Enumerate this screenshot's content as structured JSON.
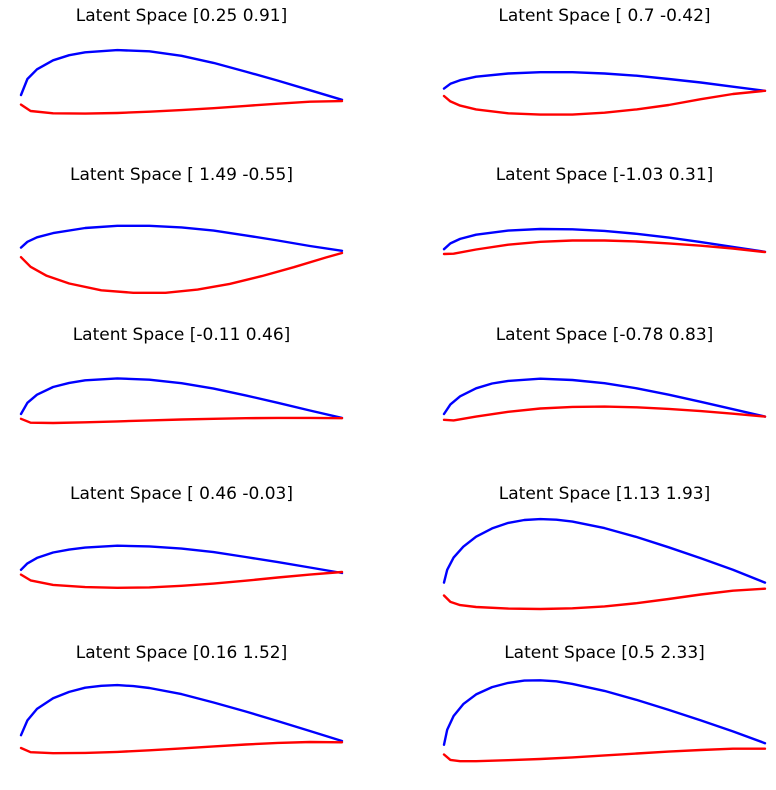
{
  "colors": {
    "upper": "#0000ff",
    "lower": "#ff0000",
    "text": "#000000",
    "background": "#ffffff"
  },
  "chart_data": [
    {
      "type": "line",
      "title": "Latent Space [0.25 0.91]",
      "axes_visible": false,
      "xlim": [
        0,
        1
      ],
      "ylim": [
        -0.12,
        0.22
      ],
      "series": [
        {
          "role": "upper",
          "x": [
            0,
            0.02,
            0.05,
            0.1,
            0.15,
            0.2,
            0.3,
            0.4,
            0.5,
            0.6,
            0.7,
            0.8,
            0.9,
            1.0
          ],
          "y": [
            0,
            0.05,
            0.08,
            0.108,
            0.124,
            0.133,
            0.14,
            0.136,
            0.122,
            0.1,
            0.073,
            0.045,
            0.015,
            -0.015
          ]
        },
        {
          "role": "lower",
          "x": [
            0,
            0.03,
            0.1,
            0.2,
            0.3,
            0.4,
            0.5,
            0.6,
            0.7,
            0.8,
            0.9,
            1.0
          ],
          "y": [
            -0.03,
            -0.05,
            -0.057,
            -0.058,
            -0.056,
            -0.052,
            -0.047,
            -0.041,
            -0.034,
            -0.027,
            -0.021,
            -0.019
          ]
        }
      ]
    },
    {
      "type": "line",
      "title": "Latent Space [ 0.7  -0.42]",
      "axes_visible": false,
      "xlim": [
        0,
        1
      ],
      "ylim": [
        -0.12,
        0.22
      ],
      "series": [
        {
          "role": "upper",
          "x": [
            0,
            0.02,
            0.05,
            0.1,
            0.2,
            0.3,
            0.4,
            0.5,
            0.6,
            0.7,
            0.8,
            0.9,
            1.0
          ],
          "y": [
            0.02,
            0.035,
            0.046,
            0.057,
            0.067,
            0.071,
            0.071,
            0.067,
            0.06,
            0.05,
            0.039,
            0.026,
            0.013
          ]
        },
        {
          "role": "lower",
          "x": [
            0,
            0.02,
            0.05,
            0.1,
            0.2,
            0.3,
            0.4,
            0.5,
            0.6,
            0.7,
            0.8,
            0.9,
            1.0
          ],
          "y": [
            -0.003,
            -0.02,
            -0.033,
            -0.045,
            -0.057,
            -0.061,
            -0.061,
            -0.055,
            -0.045,
            -0.031,
            -0.013,
            0.003,
            0.013
          ]
        }
      ]
    },
    {
      "type": "line",
      "title": "Latent Space [ 1.49 -0.55]",
      "axes_visible": false,
      "xlim": [
        0,
        1
      ],
      "ylim": [
        -0.12,
        0.22
      ],
      "series": [
        {
          "role": "upper",
          "x": [
            0,
            0.02,
            0.05,
            0.1,
            0.2,
            0.3,
            0.4,
            0.5,
            0.6,
            0.7,
            0.8,
            0.9,
            1.0
          ],
          "y": [
            0.02,
            0.038,
            0.052,
            0.065,
            0.081,
            0.088,
            0.088,
            0.083,
            0.073,
            0.058,
            0.042,
            0.025,
            0.01
          ]
        },
        {
          "role": "lower",
          "x": [
            0,
            0.03,
            0.08,
            0.15,
            0.25,
            0.35,
            0.45,
            0.55,
            0.65,
            0.75,
            0.85,
            0.95,
            1.0
          ],
          "y": [
            -0.01,
            -0.04,
            -0.068,
            -0.092,
            -0.113,
            -0.121,
            -0.121,
            -0.111,
            -0.093,
            -0.069,
            -0.041,
            -0.011,
            0.003
          ]
        }
      ]
    },
    {
      "type": "line",
      "title": "Latent Space [-1.03  0.31]",
      "axes_visible": false,
      "xlim": [
        0,
        1
      ],
      "ylim": [
        -0.12,
        0.22
      ],
      "series": [
        {
          "role": "upper",
          "x": [
            0,
            0.02,
            0.05,
            0.1,
            0.2,
            0.3,
            0.4,
            0.5,
            0.6,
            0.7,
            0.8,
            0.9,
            1.0
          ],
          "y": [
            0.015,
            0.033,
            0.047,
            0.06,
            0.073,
            0.078,
            0.077,
            0.072,
            0.063,
            0.051,
            0.037,
            0.022,
            0.007
          ]
        },
        {
          "role": "lower",
          "x": [
            0,
            0.03,
            0.1,
            0.2,
            0.3,
            0.4,
            0.5,
            0.6,
            0.7,
            0.8,
            0.9,
            1.0
          ],
          "y": [
            0,
            0.001,
            0.014,
            0.029,
            0.038,
            0.042,
            0.042,
            0.039,
            0.033,
            0.026,
            0.017,
            0.006
          ]
        }
      ]
    },
    {
      "type": "line",
      "title": "Latent Space [-0.11  0.46]",
      "axes_visible": false,
      "xlim": [
        0,
        1
      ],
      "ylim": [
        -0.12,
        0.22
      ],
      "series": [
        {
          "role": "upper",
          "x": [
            0,
            0.02,
            0.05,
            0.1,
            0.15,
            0.2,
            0.3,
            0.4,
            0.5,
            0.6,
            0.7,
            0.8,
            0.9,
            1.0
          ],
          "y": [
            0,
            0.035,
            0.06,
            0.084,
            0.097,
            0.105,
            0.111,
            0.107,
            0.096,
            0.079,
            0.058,
            0.035,
            0.011,
            -0.012
          ]
        },
        {
          "role": "lower",
          "x": [
            0,
            0.03,
            0.1,
            0.2,
            0.3,
            0.4,
            0.5,
            0.6,
            0.7,
            0.8,
            0.9,
            1.0
          ],
          "y": [
            -0.015,
            -0.027,
            -0.028,
            -0.026,
            -0.023,
            -0.02,
            -0.017,
            -0.015,
            -0.013,
            -0.012,
            -0.012,
            -0.013
          ]
        }
      ]
    },
    {
      "type": "line",
      "title": "Latent Space [-0.78  0.83]",
      "axes_visible": false,
      "xlim": [
        0,
        1
      ],
      "ylim": [
        -0.12,
        0.22
      ],
      "series": [
        {
          "role": "upper",
          "x": [
            0,
            0.02,
            0.05,
            0.1,
            0.15,
            0.2,
            0.3,
            0.4,
            0.5,
            0.6,
            0.7,
            0.8,
            0.9,
            1.0
          ],
          "y": [
            0,
            0.03,
            0.055,
            0.08,
            0.095,
            0.103,
            0.11,
            0.106,
            0.096,
            0.08,
            0.06,
            0.038,
            0.015,
            -0.008
          ]
        },
        {
          "role": "lower",
          "x": [
            0,
            0.03,
            0.1,
            0.2,
            0.3,
            0.4,
            0.5,
            0.6,
            0.7,
            0.8,
            0.9,
            1.0
          ],
          "y": [
            -0.018,
            -0.02,
            -0.008,
            0.007,
            0.017,
            0.022,
            0.023,
            0.021,
            0.016,
            0.009,
            0.001,
            -0.008
          ]
        }
      ]
    },
    {
      "type": "line",
      "title": "Latent Space [ 0.46 -0.03]",
      "axes_visible": false,
      "xlim": [
        0,
        1
      ],
      "ylim": [
        -0.12,
        0.22
      ],
      "series": [
        {
          "role": "upper",
          "x": [
            0,
            0.02,
            0.05,
            0.1,
            0.15,
            0.2,
            0.3,
            0.4,
            0.5,
            0.6,
            0.7,
            0.8,
            0.9,
            1.0
          ],
          "y": [
            0.01,
            0.03,
            0.047,
            0.064,
            0.073,
            0.079,
            0.085,
            0.083,
            0.076,
            0.065,
            0.05,
            0.034,
            0.017,
            0
          ]
        },
        {
          "role": "lower",
          "x": [
            0,
            0.03,
            0.1,
            0.2,
            0.3,
            0.4,
            0.5,
            0.6,
            0.7,
            0.8,
            0.9,
            1.0
          ],
          "y": [
            -0.005,
            -0.023,
            -0.037,
            -0.044,
            -0.046,
            -0.045,
            -0.04,
            -0.033,
            -0.024,
            -0.014,
            -0.005,
            0.003
          ]
        }
      ]
    },
    {
      "type": "line",
      "title": "Latent Space [1.13 1.93]",
      "axes_visible": false,
      "xlim": [
        0,
        1
      ],
      "ylim": [
        -0.12,
        0.22
      ],
      "series": [
        {
          "role": "upper",
          "x": [
            0,
            0.01,
            0.03,
            0.06,
            0.1,
            0.15,
            0.2,
            0.25,
            0.3,
            0.35,
            0.4,
            0.5,
            0.6,
            0.7,
            0.8,
            0.9,
            1.0
          ],
          "y": [
            -0.03,
            0.01,
            0.048,
            0.082,
            0.113,
            0.139,
            0.156,
            0.165,
            0.168,
            0.166,
            0.16,
            0.14,
            0.112,
            0.08,
            0.046,
            0.01,
            -0.03
          ]
        },
        {
          "role": "lower",
          "x": [
            0,
            0.02,
            0.05,
            0.1,
            0.2,
            0.3,
            0.4,
            0.5,
            0.6,
            0.7,
            0.8,
            0.9,
            1.0
          ],
          "y": [
            -0.07,
            -0.09,
            -0.1,
            -0.106,
            -0.111,
            -0.112,
            -0.11,
            -0.104,
            -0.094,
            -0.081,
            -0.067,
            -0.055,
            -0.049
          ]
        }
      ]
    },
    {
      "type": "line",
      "title": "Latent Space [0.16 1.52]",
      "axes_visible": false,
      "xlim": [
        0,
        1
      ],
      "ylim": [
        -0.12,
        0.22
      ],
      "series": [
        {
          "role": "upper",
          "x": [
            0,
            0.02,
            0.05,
            0.1,
            0.15,
            0.2,
            0.25,
            0.3,
            0.35,
            0.4,
            0.5,
            0.6,
            0.7,
            0.8,
            0.9,
            1.0
          ],
          "y": [
            -0.01,
            0.036,
            0.072,
            0.105,
            0.125,
            0.138,
            0.144,
            0.146,
            0.143,
            0.137,
            0.118,
            0.092,
            0.064,
            0.034,
            0.003,
            -0.028
          ]
        },
        {
          "role": "lower",
          "x": [
            0,
            0.03,
            0.1,
            0.2,
            0.3,
            0.4,
            0.5,
            0.6,
            0.7,
            0.8,
            0.9,
            1.0
          ],
          "y": [
            -0.05,
            -0.063,
            -0.066,
            -0.065,
            -0.062,
            -0.057,
            -0.051,
            -0.045,
            -0.039,
            -0.034,
            -0.031,
            -0.032
          ]
        }
      ]
    },
    {
      "type": "line",
      "title": "Latent Space [0.5  2.33]",
      "axes_visible": false,
      "xlim": [
        0,
        1
      ],
      "ylim": [
        -0.12,
        0.22
      ],
      "series": [
        {
          "role": "upper",
          "x": [
            0,
            0.01,
            0.03,
            0.06,
            0.1,
            0.15,
            0.2,
            0.25,
            0.3,
            0.35,
            0.4,
            0.5,
            0.6,
            0.7,
            0.8,
            0.9,
            1.0
          ],
          "y": [
            -0.04,
            0.007,
            0.05,
            0.087,
            0.117,
            0.14,
            0.153,
            0.16,
            0.161,
            0.158,
            0.15,
            0.128,
            0.1,
            0.069,
            0.036,
            0.002,
            -0.035
          ]
        },
        {
          "role": "lower",
          "x": [
            0,
            0.02,
            0.05,
            0.1,
            0.2,
            0.3,
            0.4,
            0.5,
            0.6,
            0.7,
            0.8,
            0.9,
            1.0
          ],
          "y": [
            -0.07,
            -0.087,
            -0.091,
            -0.091,
            -0.088,
            -0.084,
            -0.079,
            -0.073,
            -0.067,
            -0.061,
            -0.056,
            -0.052,
            -0.052
          ]
        }
      ]
    }
  ]
}
